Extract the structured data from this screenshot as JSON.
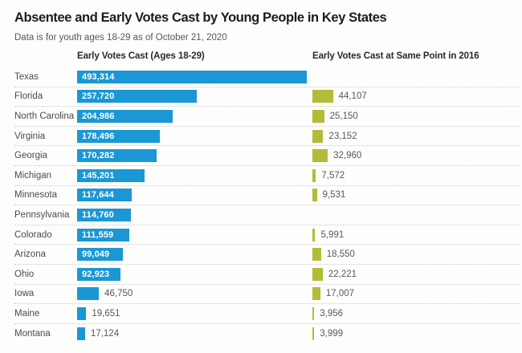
{
  "title": "Absentee and Early Votes Cast by Young People in Key States",
  "subtitle": "Data is for youth ages 18-29 as of October 21, 2020",
  "columns": {
    "left": "Early Votes Cast (Ages 18-29)",
    "right": "Early Votes Cast at Same Point in 2016"
  },
  "colors": {
    "bar_2020": "#1a97d4",
    "bar_2016": "#b1bc38",
    "value_inside_text": "#ffffff",
    "value_outside_text": "#58585b",
    "state_label_text": "#4b4b4e",
    "separator": "#cbcbc9",
    "title_text": "#1c1c1e"
  },
  "chart_data": {
    "type": "bar",
    "orientation": "horizontal",
    "title": "Absentee and Early Votes Cast by Young People in Key States",
    "subtitle": "Data is for youth ages 18-29 as of October 21, 2020",
    "categories": [
      "Texas",
      "Florida",
      "North Carolina",
      "Virginia",
      "Georgia",
      "Michigan",
      "Minnesota",
      "Pennsylvania",
      "Colorado",
      "Arizona",
      "Ohio",
      "Iowa",
      "Maine",
      "Montana"
    ],
    "series": [
      {
        "name": "Early Votes Cast (Ages 18-29)",
        "color": "#1a97d4",
        "values": [
          493314,
          257720,
          204986,
          178496,
          170282,
          145201,
          117644,
          114760,
          111559,
          99049,
          92923,
          46750,
          19651,
          17124
        ]
      },
      {
        "name": "Early Votes Cast at Same Point in 2016",
        "color": "#b1bc38",
        "values": [
          null,
          44107,
          25150,
          23152,
          32960,
          7572,
          9531,
          null,
          5991,
          18550,
          22221,
          17007,
          3956,
          3999
        ]
      }
    ],
    "xlim": [
      0,
      493314
    ],
    "grid": "dotted horizontal row separators",
    "legend_position": "column headers above each bar group",
    "value_labels": "shown for every bar; inside wide 2020 bars, otherwise right of bar"
  }
}
